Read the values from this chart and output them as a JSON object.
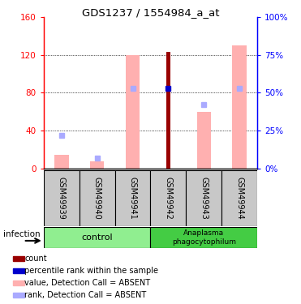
{
  "title": "GDS1237 / 1554984_a_at",
  "samples": [
    "GSM49939",
    "GSM49940",
    "GSM49941",
    "GSM49942",
    "GSM49943",
    "GSM49944"
  ],
  "ylim_left": [
    0,
    160
  ],
  "ylim_right": [
    0,
    100
  ],
  "yticks_left": [
    0,
    40,
    80,
    120,
    160
  ],
  "yticks_right": [
    0,
    25,
    50,
    75,
    100
  ],
  "ytick_labels_left": [
    "0",
    "40",
    "80",
    "120",
    "160"
  ],
  "ytick_labels_right": [
    "0%",
    "25%",
    "50%",
    "75%",
    "100%"
  ],
  "pink_bar_values": [
    15,
    8,
    120,
    0,
    60,
    130
  ],
  "blue_square_values_pct": [
    22,
    7,
    53,
    0,
    42,
    53
  ],
  "dark_red_bar_values": [
    0,
    0,
    0,
    123,
    0,
    0
  ],
  "blue_dot_values_pct": [
    0,
    0,
    0,
    53,
    0,
    0
  ],
  "pink_bar_color": "#FFB0B0",
  "blue_square_color": "#AAAAFF",
  "dark_red_color": "#990000",
  "blue_dot_color": "#0000CC",
  "ctrl_color": "#90EE90",
  "ana_color": "#44CC44",
  "gray_box_color": "#C8C8C8",
  "legend_items": [
    {
      "color": "#990000",
      "label": "count"
    },
    {
      "color": "#0000CC",
      "label": "percentile rank within the sample"
    },
    {
      "color": "#FFB0B0",
      "label": "value, Detection Call = ABSENT"
    },
    {
      "color": "#AAAAFF",
      "label": "rank, Detection Call = ABSENT"
    }
  ]
}
